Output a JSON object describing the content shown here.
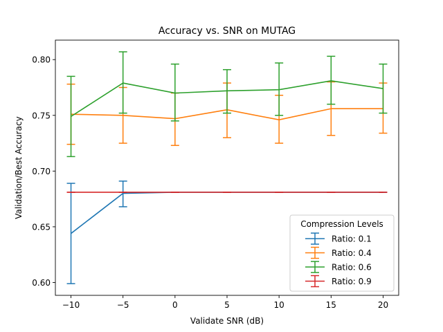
{
  "chart_data": {
    "type": "line",
    "title": "Accuracy vs. SNR on MUTAG",
    "xlabel": "Validate SNR (dB)",
    "ylabel": "Validation/Best Accuracy",
    "x": [
      -10,
      -5,
      0,
      5,
      10,
      15,
      20
    ],
    "xlim": [
      -11.5,
      21.5
    ],
    "ylim": [
      0.5885,
      0.8175
    ],
    "xticks": [
      -10,
      -5,
      0,
      5,
      10,
      15,
      20
    ],
    "xtick_labels": [
      "−10",
      "−5",
      "0",
      "5",
      "10",
      "15",
      "20"
    ],
    "yticks": [
      0.6,
      0.65,
      0.7,
      0.75,
      0.8
    ],
    "ytick_labels": [
      "0.60",
      "0.65",
      "0.70",
      "0.75",
      "0.80"
    ],
    "grid": false,
    "legend": {
      "title": "Compression Levels",
      "placement": "lower-right"
    },
    "series": [
      {
        "name": "Ratio: 0.1",
        "color": "#1f77b4",
        "values": [
          0.644,
          0.68,
          0.681,
          0.681,
          0.681,
          0.681,
          0.681
        ],
        "err_lower": [
          0.599,
          0.668,
          0.681,
          0.681,
          0.681,
          0.681,
          0.681
        ],
        "err_upper": [
          0.689,
          0.691,
          0.681,
          0.681,
          0.681,
          0.681,
          0.681
        ]
      },
      {
        "name": "Ratio: 0.4",
        "color": "#ff7f0e",
        "values": [
          0.751,
          0.75,
          0.747,
          0.755,
          0.746,
          0.756,
          0.756
        ],
        "err_lower": [
          0.724,
          0.725,
          0.723,
          0.73,
          0.725,
          0.732,
          0.734
        ],
        "err_upper": [
          0.778,
          0.775,
          0.77,
          0.779,
          0.768,
          0.78,
          0.779
        ]
      },
      {
        "name": "Ratio: 0.6",
        "color": "#2ca02c",
        "values": [
          0.749,
          0.779,
          0.77,
          0.772,
          0.773,
          0.781,
          0.774
        ],
        "err_lower": [
          0.713,
          0.752,
          0.745,
          0.752,
          0.75,
          0.76,
          0.752
        ],
        "err_upper": [
          0.785,
          0.807,
          0.796,
          0.791,
          0.797,
          0.803,
          0.796
        ]
      },
      {
        "name": "Ratio: 0.9",
        "color": "#d62728",
        "values": [
          0.681,
          0.681,
          0.681,
          0.681,
          0.681,
          0.681,
          0.681
        ],
        "err_lower": [
          0.681,
          0.681,
          0.681,
          0.681,
          0.681,
          0.681,
          0.681
        ],
        "err_upper": [
          0.681,
          0.681,
          0.681,
          0.681,
          0.681,
          0.681,
          0.681
        ]
      }
    ]
  }
}
